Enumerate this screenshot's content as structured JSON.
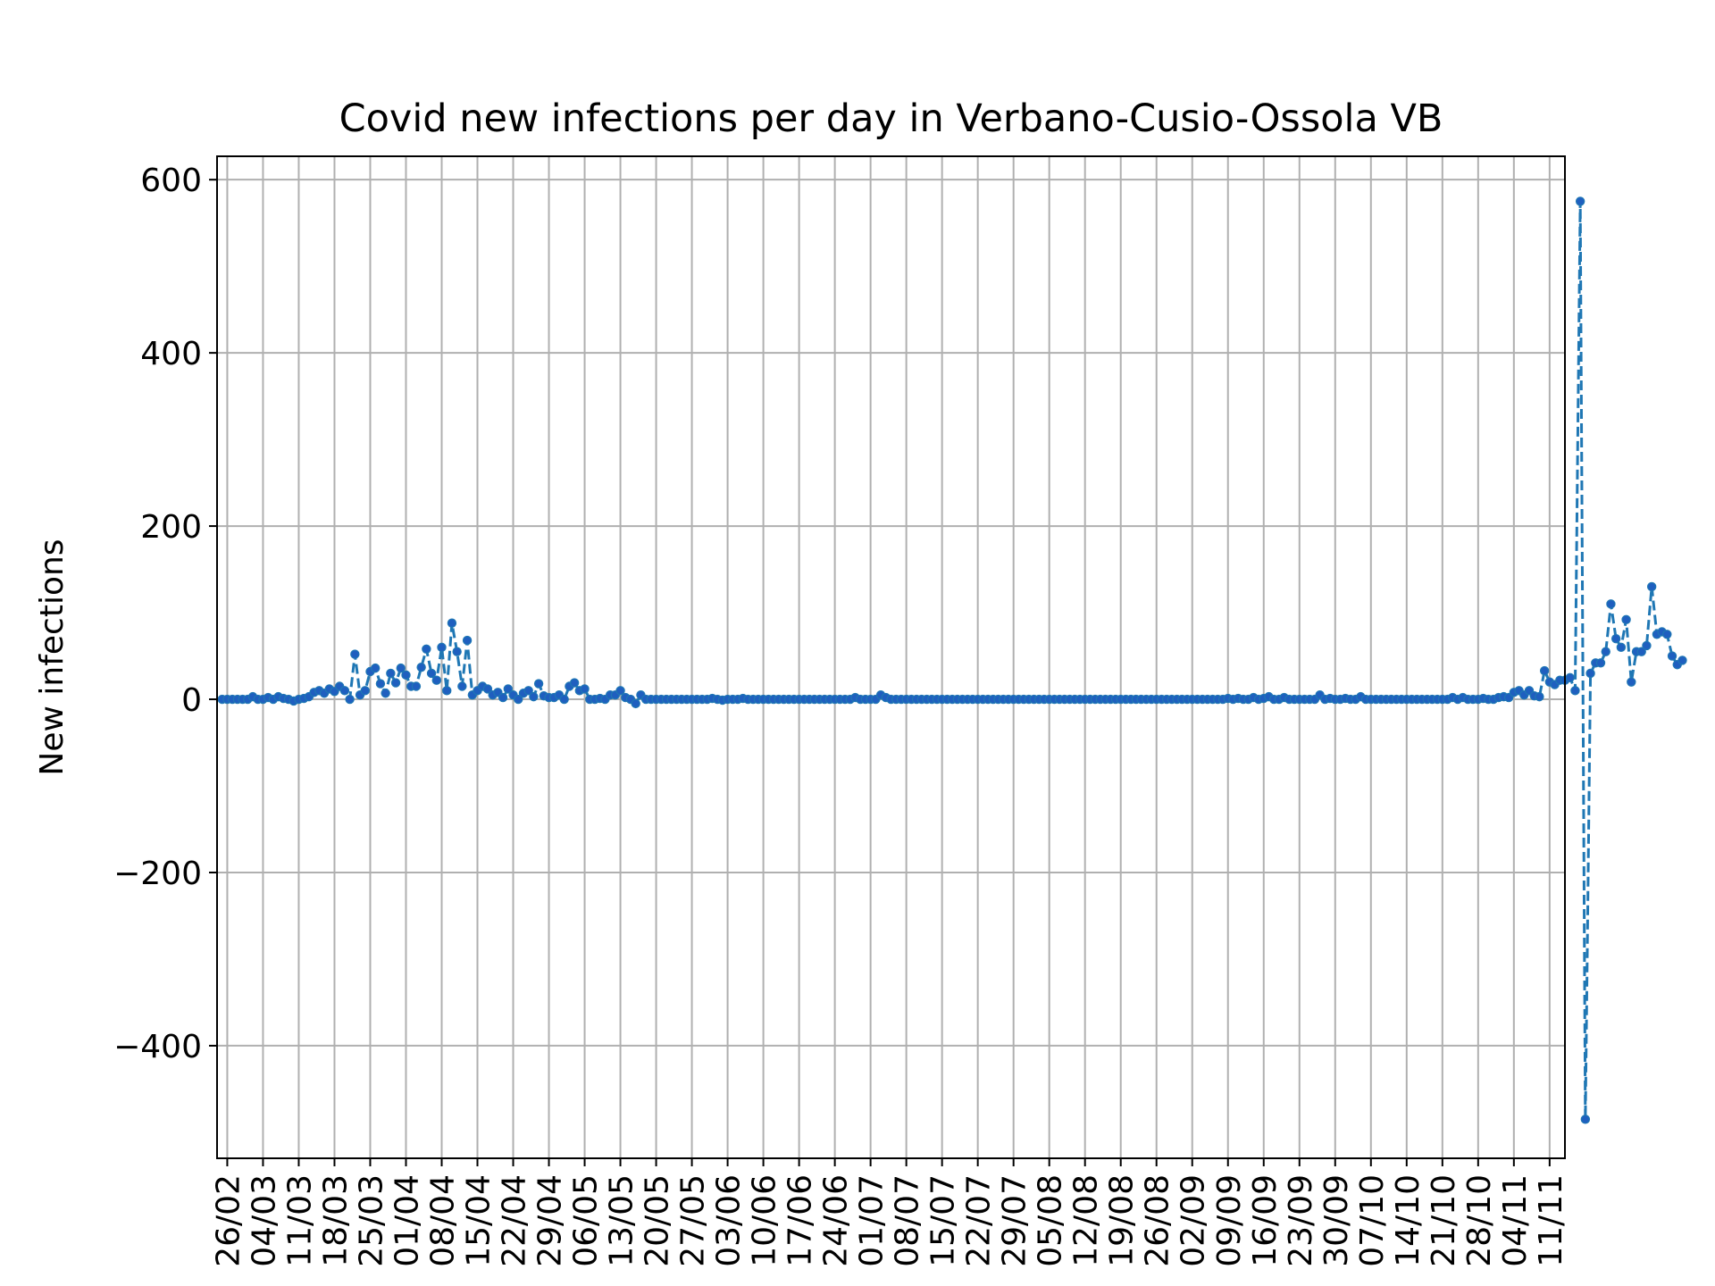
{
  "chart_data": {
    "type": "line",
    "title": "Covid new infections per day in Verbano-Cusio-Ossola VB",
    "xlabel": "",
    "ylabel": "New infections",
    "ylim": [
      -530,
      627
    ],
    "yticks": [
      -400,
      -200,
      0,
      200,
      400,
      600
    ],
    "ytick_labels": [
      "−400",
      "−200",
      "0",
      "200",
      "400",
      "600"
    ],
    "x_start": "2020-02-24",
    "x_end": "2020-11-14",
    "xtick_dates": [
      "2020-02-26",
      "2020-03-04",
      "2020-03-11",
      "2020-03-18",
      "2020-03-25",
      "2020-04-01",
      "2020-04-08",
      "2020-04-15",
      "2020-04-22",
      "2020-04-29",
      "2020-05-06",
      "2020-05-13",
      "2020-05-20",
      "2020-05-27",
      "2020-06-03",
      "2020-06-10",
      "2020-06-17",
      "2020-06-24",
      "2020-07-01",
      "2020-07-08",
      "2020-07-15",
      "2020-07-22",
      "2020-07-29",
      "2020-08-05",
      "2020-08-12",
      "2020-08-19",
      "2020-08-26",
      "2020-09-02",
      "2020-09-09",
      "2020-09-16",
      "2020-09-23",
      "2020-09-30",
      "2020-10-07",
      "2020-10-14",
      "2020-10-21",
      "2020-10-28",
      "2020-11-04",
      "2020-11-11"
    ],
    "xtick_labels": [
      "26/02",
      "04/03",
      "11/03",
      "18/03",
      "25/03",
      "01/04",
      "08/04",
      "15/04",
      "22/04",
      "29/04",
      "06/05",
      "13/05",
      "20/05",
      "27/05",
      "03/06",
      "10/06",
      "17/06",
      "24/06",
      "01/07",
      "08/07",
      "15/07",
      "22/07",
      "29/07",
      "05/08",
      "12/08",
      "19/08",
      "26/08",
      "02/09",
      "09/09",
      "16/09",
      "23/09",
      "30/09",
      "07/10",
      "14/10",
      "21/10",
      "28/10",
      "04/11",
      "11/11"
    ],
    "grid": true,
    "series": [
      {
        "x_start": "2020-02-25",
        "values": [
          0,
          0,
          0,
          0,
          0,
          0,
          3,
          0,
          0,
          2,
          0,
          3,
          1,
          0,
          -2,
          0,
          1,
          3,
          8,
          10,
          7,
          12,
          9,
          15,
          10,
          0,
          52,
          5,
          10,
          32,
          36,
          18,
          7,
          30,
          19,
          36,
          28,
          15,
          15,
          37,
          58,
          30,
          22,
          60,
          10,
          88,
          55,
          15,
          68,
          5,
          10,
          15,
          12,
          5,
          8,
          2,
          12,
          5,
          0,
          7,
          10,
          3,
          18,
          4,
          2,
          2,
          5,
          0,
          15,
          19,
          10,
          12,
          0,
          0,
          1,
          0,
          5,
          5,
          10,
          2,
          0,
          -5,
          5,
          0,
          0,
          0,
          0,
          0,
          0,
          0,
          0,
          0,
          0,
          0,
          0,
          0,
          1,
          0,
          -1,
          0,
          0,
          0,
          1,
          0,
          0,
          0,
          0,
          0,
          0,
          0,
          0,
          0,
          0,
          0,
          0,
          0,
          0,
          0,
          0,
          0,
          0,
          0,
          0,
          0,
          2,
          0,
          0,
          0,
          0,
          5,
          2,
          0,
          0,
          0,
          0,
          0,
          0,
          0,
          0,
          0,
          0,
          0,
          0,
          0,
          0,
          0,
          0,
          0,
          0,
          0,
          0,
          0,
          0,
          0,
          0,
          0,
          0,
          0,
          0,
          0,
          0,
          0,
          0,
          0,
          0,
          0,
          0,
          0,
          0,
          0,
          0,
          0,
          0,
          0,
          0,
          0,
          0,
          0,
          0,
          0,
          0,
          0,
          0,
          0,
          0,
          0,
          0,
          0,
          0,
          0,
          0,
          0,
          0,
          0,
          0,
          0,
          0,
          1,
          0,
          1,
          0,
          0,
          2,
          0,
          1,
          3,
          0,
          0,
          2,
          0,
          0,
          0,
          0,
          0,
          0,
          5,
          0,
          1,
          0,
          0,
          1,
          0,
          0,
          3,
          0,
          0,
          0,
          0,
          0,
          0,
          0,
          0,
          0,
          0,
          0,
          0,
          0,
          0,
          0,
          0,
          0,
          2,
          0,
          2,
          0,
          0,
          0,
          1,
          0,
          0,
          2,
          3,
          2,
          8,
          10,
          5,
          10,
          4,
          3,
          33,
          20,
          17,
          22,
          22,
          25,
          10,
          575,
          -485,
          30,
          42,
          42,
          55,
          110,
          70,
          60,
          92,
          20,
          55,
          55,
          62,
          130,
          75,
          78,
          75,
          50,
          40,
          45
        ]
      }
    ]
  }
}
